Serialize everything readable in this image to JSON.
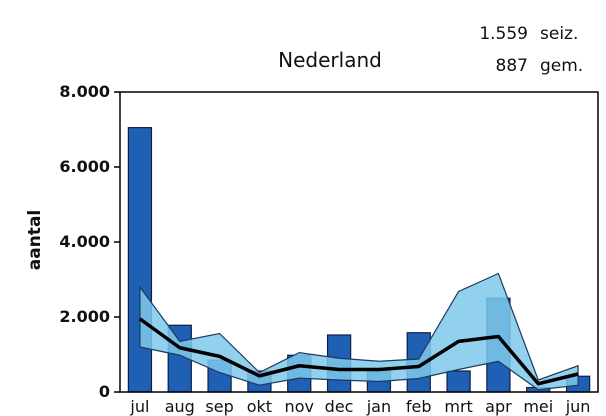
{
  "chart_data": {
    "type": "bar",
    "title": "Nederland",
    "stats": [
      {
        "value": "1.559",
        "label": "seiz."
      },
      {
        "value": "887",
        "label": "gem."
      }
    ],
    "ylabel": "aantal",
    "xlabel": "",
    "ylim": [
      0,
      8000
    ],
    "yticks": [
      0,
      2000,
      4000,
      6000,
      8000
    ],
    "ytick_labels": [
      "0",
      "2.000",
      "4.000",
      "6.000",
      "8.000"
    ],
    "categories": [
      "jul",
      "aug",
      "sep",
      "okt",
      "nov",
      "dec",
      "jan",
      "feb",
      "mrt",
      "apr",
      "mei",
      "jun"
    ],
    "series": [
      {
        "kind": "bar",
        "values": [
          7050,
          1780,
          850,
          560,
          980,
          1520,
          560,
          1580,
          560,
          2500,
          120,
          420
        ]
      },
      {
        "kind": "line",
        "values": [
          1950,
          1180,
          950,
          430,
          700,
          600,
          600,
          680,
          1350,
          1480,
          220,
          480
        ]
      },
      {
        "kind": "band",
        "lower": [
          1200,
          980,
          520,
          180,
          370,
          320,
          280,
          360,
          600,
          820,
          60,
          180
        ],
        "upper": [
          2800,
          1350,
          1560,
          520,
          1050,
          900,
          820,
          880,
          2680,
          3160,
          320,
          700
        ]
      }
    ],
    "colors": {
      "bar": "#1f5fb4",
      "bar_stroke": "#0c1f4a",
      "band_fill": "#7fc9ea",
      "band_stroke": "#1b3a5e",
      "line": "#000000"
    },
    "grid": false
  }
}
